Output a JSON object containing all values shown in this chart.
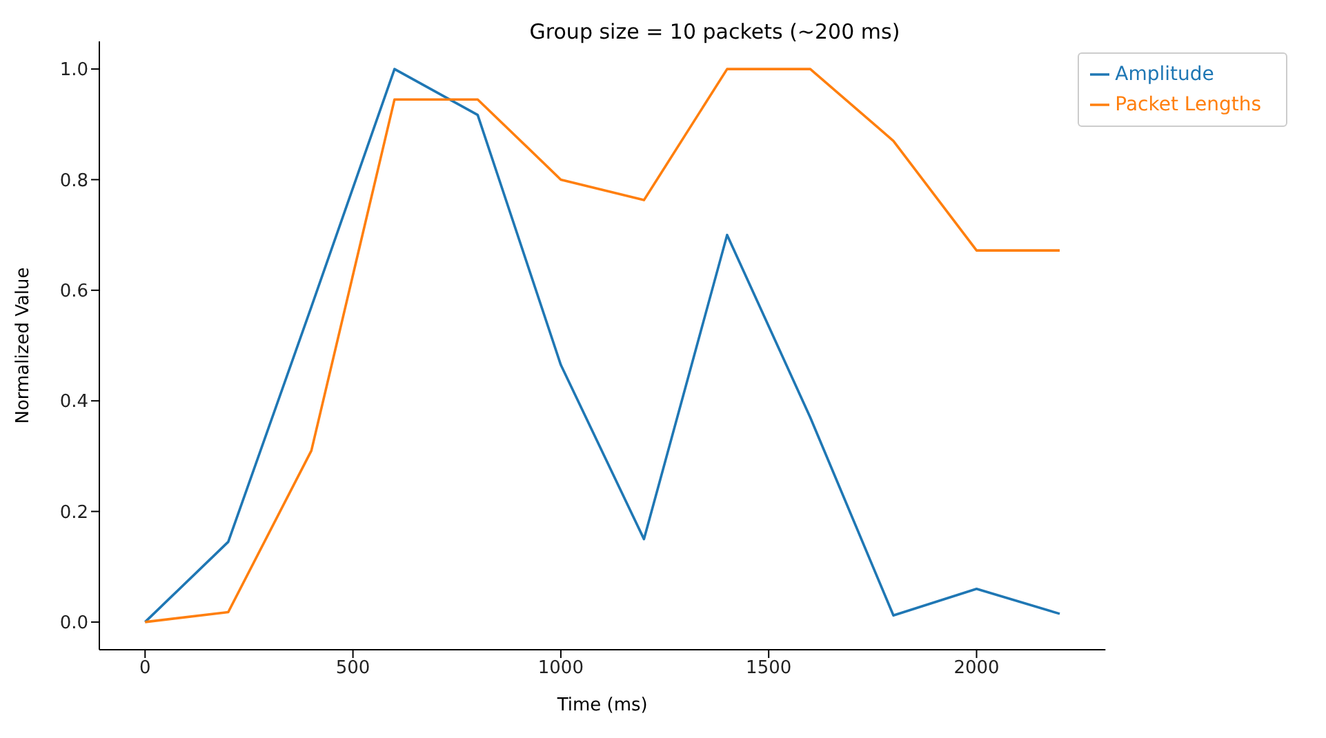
{
  "chart_data": {
    "type": "line",
    "title": "Group size = 10 packets (~200 ms)",
    "xlabel": "Time (ms)",
    "ylabel": "Normalized Value",
    "x": [
      0,
      200,
      400,
      600,
      800,
      1000,
      1200,
      1400,
      1600,
      1800,
      2000,
      2200
    ],
    "series": [
      {
        "name": "Amplitude",
        "color": "#1f77b4",
        "values": [
          0,
          0.145,
          0.57,
          1.0,
          0.917,
          0.465,
          0.15,
          0.7,
          0.37,
          0.012,
          0.06,
          0.015
        ]
      },
      {
        "name": "Packet Lengths",
        "color": "#ff7f0e",
        "values": [
          0,
          0.018,
          0.31,
          0.945,
          0.945,
          0.8,
          0.763,
          1.0,
          1.0,
          0.87,
          0.672,
          0.672
        ]
      }
    ],
    "xlim": [
      -110,
      2310
    ],
    "xticks": [
      0,
      500,
      1000,
      1500,
      2000
    ],
    "ylim": [
      -0.05,
      1.05
    ],
    "yticks": [
      {
        "value": 0,
        "label": "0.0"
      },
      {
        "value": 0.2,
        "label": "0.2"
      },
      {
        "value": 0.4,
        "label": "0.4"
      },
      {
        "value": 0.6,
        "label": "0.6"
      },
      {
        "value": 0.8,
        "label": "0.8"
      },
      {
        "value": 1,
        "label": "1.0"
      }
    ],
    "grid": false,
    "legend": "top right",
    "marker": "none",
    "line_style": "solid"
  }
}
